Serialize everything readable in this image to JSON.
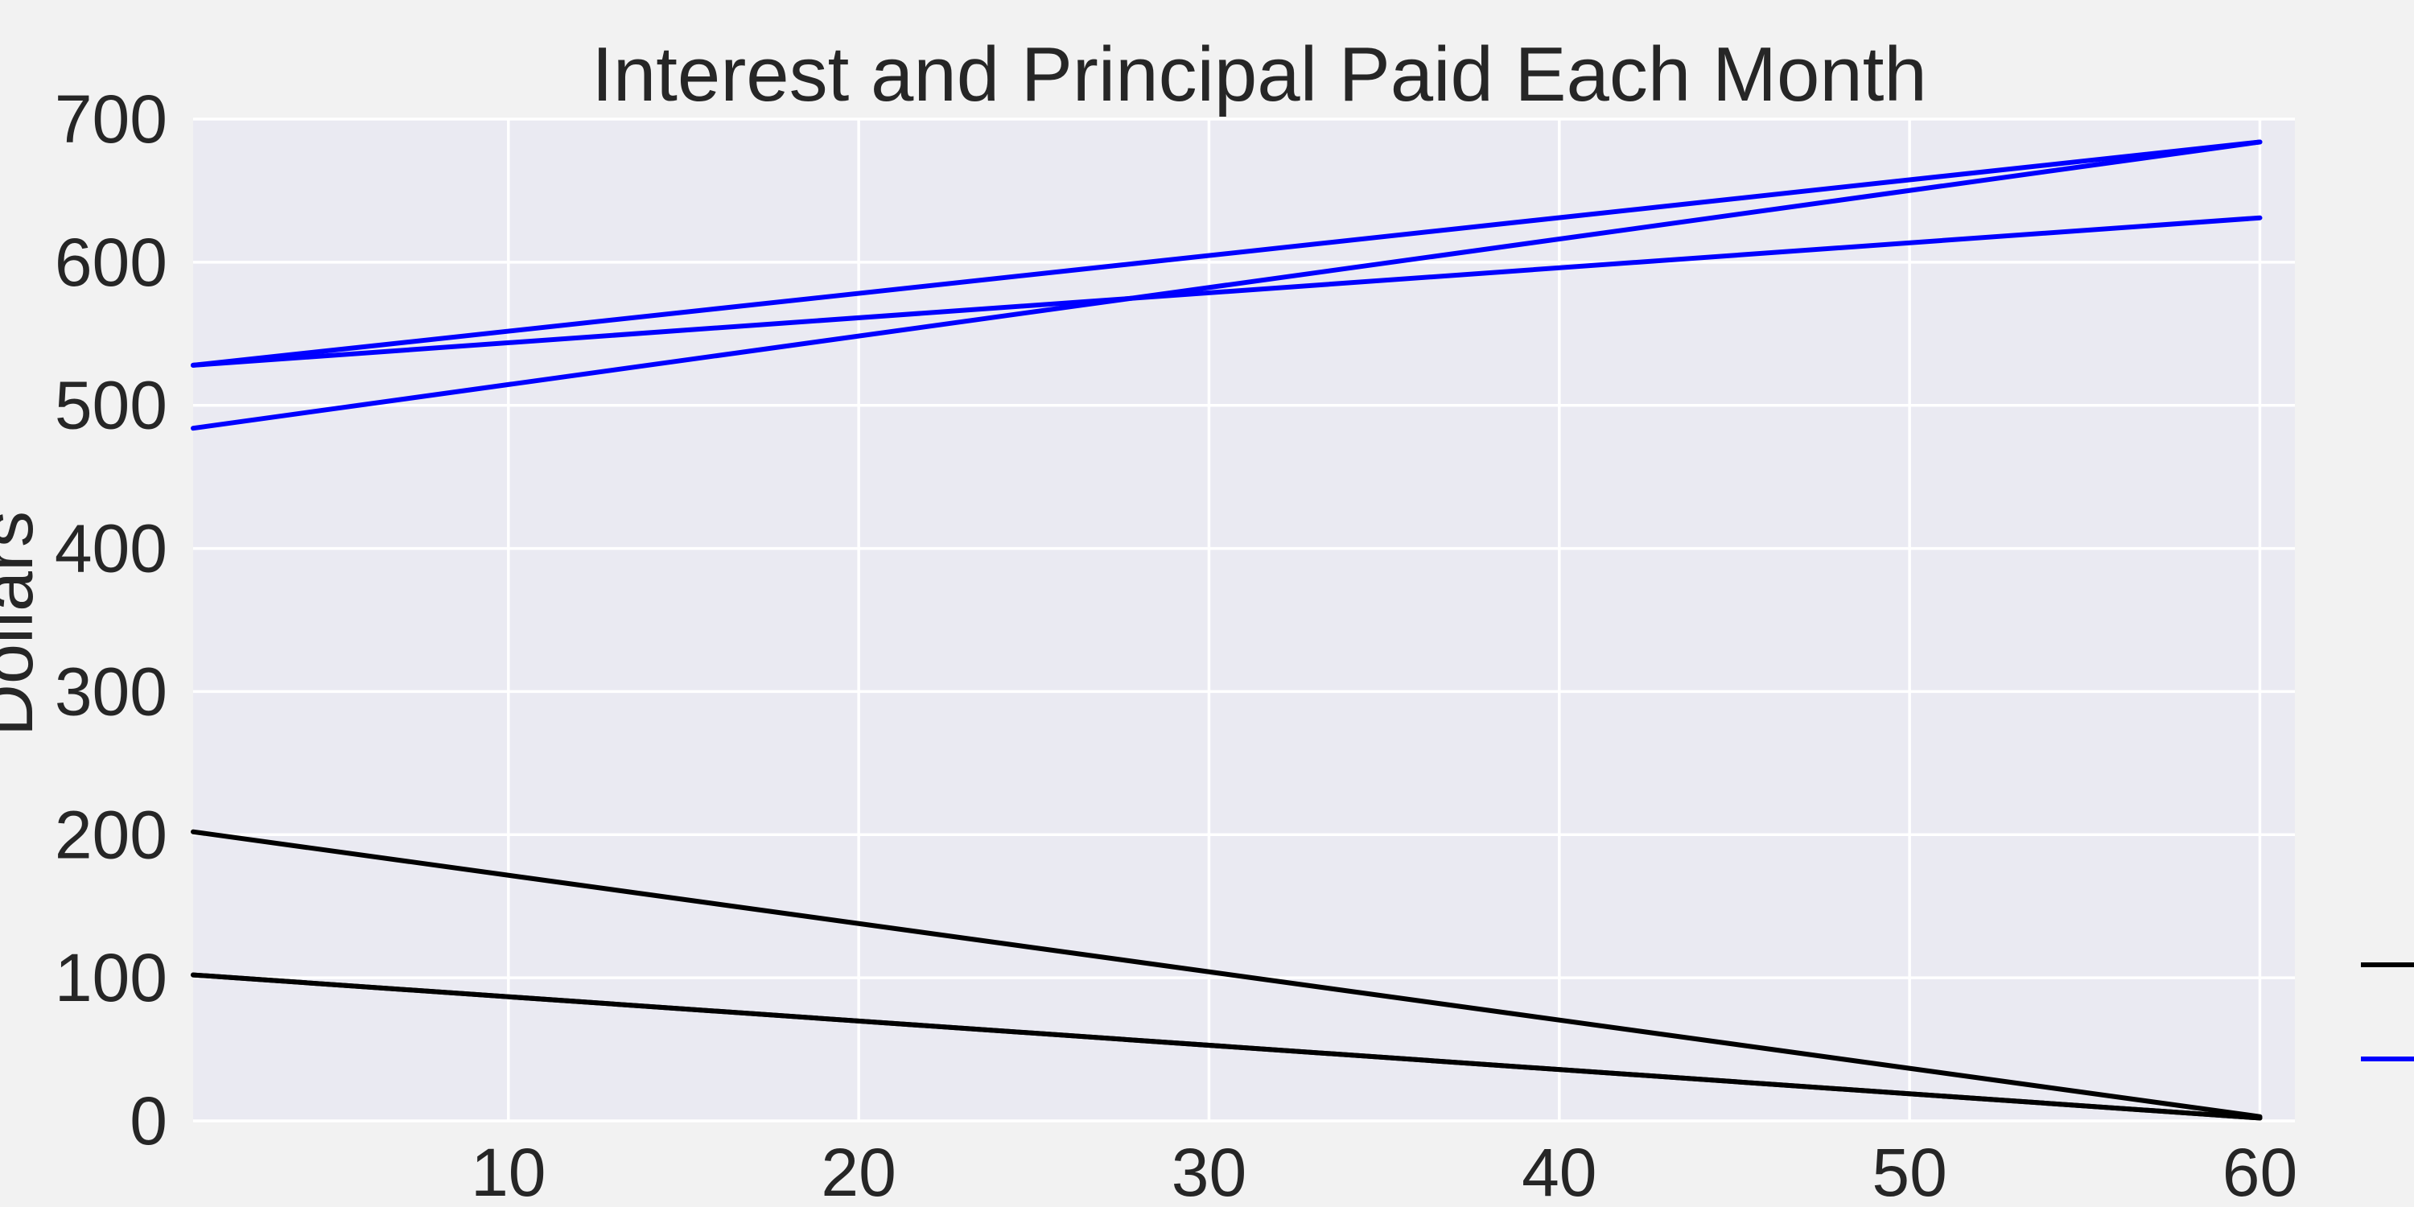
{
  "chart_data": {
    "type": "line",
    "title": "Interest and Principal Paid Each Month",
    "xlabel": "",
    "ylabel": "Dollars",
    "xlim": [
      1,
      61
    ],
    "ylim": [
      0,
      700
    ],
    "x_ticks": [
      10,
      20,
      30,
      40,
      50,
      60
    ],
    "y_ticks": [
      0,
      100,
      200,
      300,
      400,
      500,
      600,
      700
    ],
    "grid": true,
    "colors": {
      "figure_background": "#f2f2f2",
      "plot_background": "#eaeaf2",
      "grid": "#ffffff",
      "black_series": "#000000",
      "blue_series": "#0000ff"
    },
    "series": [
      {
        "color": "#000000",
        "x": [
          1,
          60
        ],
        "values": [
          102,
          2
        ]
      },
      {
        "color": "#000000",
        "x": [
          1,
          60
        ],
        "values": [
          202,
          3
        ]
      },
      {
        "color": "#000000",
        "x": [
          1,
          60
        ],
        "values": [
          102,
          2
        ]
      },
      {
        "color": "#0000ff",
        "x": [
          1,
          60
        ],
        "values": [
          484,
          684
        ]
      },
      {
        "color": "#0000ff",
        "x": [
          1,
          60
        ],
        "values": [
          528,
          684
        ]
      },
      {
        "color": "#0000ff",
        "x": [
          1,
          60
        ],
        "values": [
          528,
          631
        ]
      }
    ],
    "legend": {
      "placement": "right-bottom",
      "entries": [
        {
          "color": "#000000",
          "label": ""
        },
        {
          "color": "#0000ff",
          "label": ""
        }
      ]
    }
  }
}
